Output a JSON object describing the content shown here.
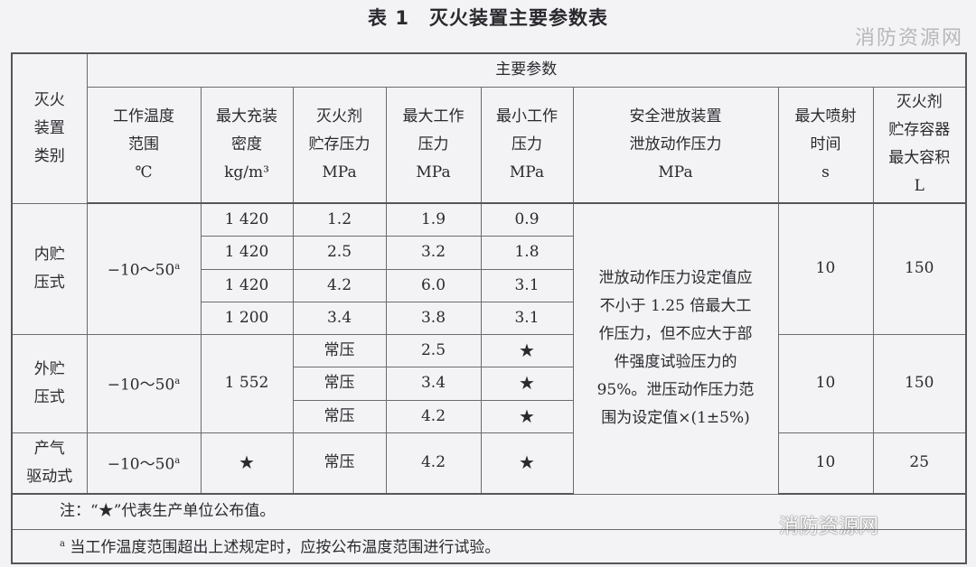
{
  "title": "表 1　灭火装置主要参数表",
  "watermark_top": "消防资源网",
  "watermark_bottom": "消防资源网",
  "header": {
    "category": "灭火\n装置\n类别",
    "group": "主要参数",
    "columns": [
      {
        "name": "工作温度\n范围",
        "unit": "℃"
      },
      {
        "name": "最大充装\n密度",
        "unit": "kg/m³"
      },
      {
        "name": "灭火剂\n贮存压力",
        "unit": "MPa"
      },
      {
        "name": "最大工作\n压力",
        "unit": "MPa"
      },
      {
        "name": "最小工作\n压力",
        "unit": "MPa"
      },
      {
        "name": "安全泄放装置\n泄放动作压力",
        "unit": "MPa"
      },
      {
        "name": "最大喷射\n时间",
        "unit": "s"
      },
      {
        "name": "灭火剂\n贮存容器\n最大容积",
        "unit": "L"
      }
    ]
  },
  "groups": [
    {
      "category": "内贮\n压式",
      "temp": "−10～50",
      "temp_note": "a",
      "rows": [
        {
          "density": "1 420",
          "storage": "1.2",
          "max": "1.9",
          "min": "0.9"
        },
        {
          "density": "1 420",
          "storage": "2.5",
          "max": "3.2",
          "min": "1.8"
        },
        {
          "density": "1 420",
          "storage": "4.2",
          "max": "6.0",
          "min": "3.1"
        },
        {
          "density": "1 200",
          "storage": "3.4",
          "max": "3.8",
          "min": "3.1"
        }
      ],
      "time": "10",
      "volume": "150"
    },
    {
      "category": "外贮\n压式",
      "temp": "−10～50",
      "temp_note": "a",
      "density": "1 552",
      "rows": [
        {
          "storage": "常压",
          "max": "2.5",
          "min": "★"
        },
        {
          "storage": "常压",
          "max": "3.4",
          "min": "★"
        },
        {
          "storage": "常压",
          "max": "4.2",
          "min": "★"
        }
      ],
      "time": "10",
      "volume": "150"
    },
    {
      "category": "产气\n驱动式",
      "temp": "−10～50",
      "temp_note": "a",
      "density": "★",
      "storage": "常压",
      "max": "4.2",
      "min": "★",
      "time": "10",
      "volume": "25"
    }
  ],
  "relief_text": "泄放动作压力设定值应\n不小于 1.25 倍最大工\n作压力，但不应大于部\n件强度试验压力的\n95%。泄压动作压力范\n围为设定值×(1±5%)",
  "notes": {
    "note1": "注：“★”代表生产单位公布值。",
    "note2_mark": "a",
    "note2": "当工作温度范围超出上述规定时，应按公布温度范围进行试验。"
  }
}
